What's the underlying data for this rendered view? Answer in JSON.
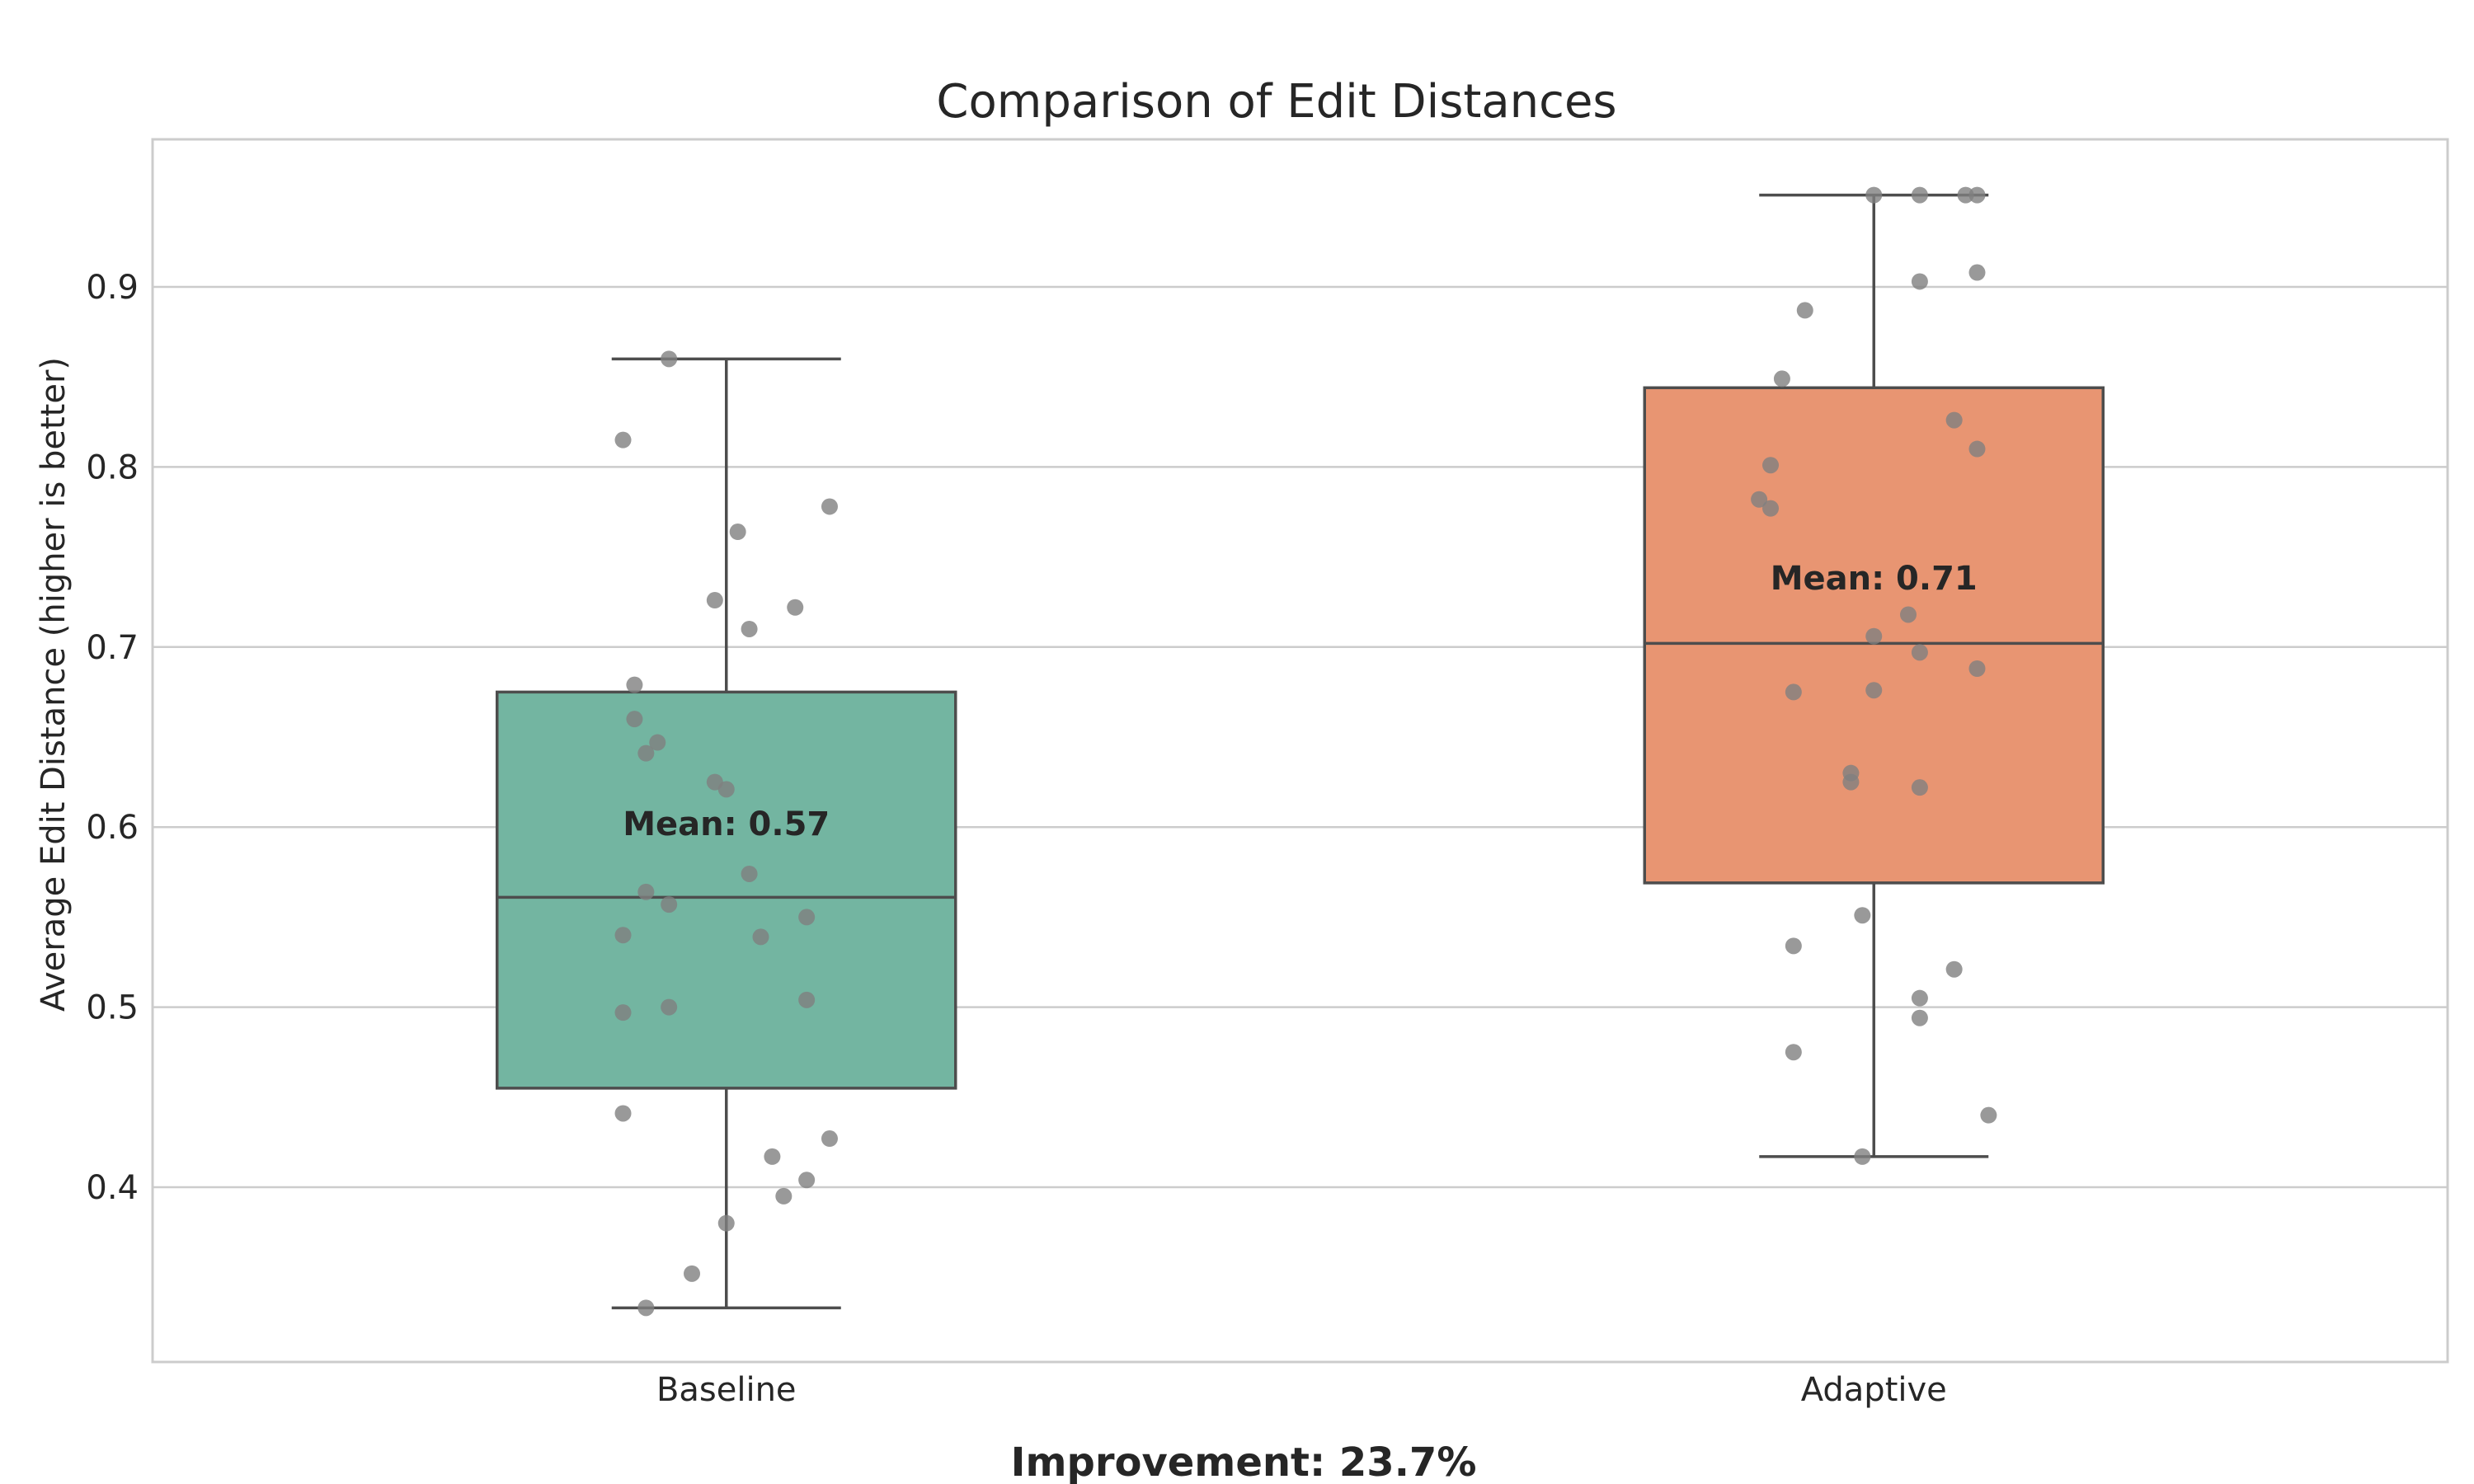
{
  "chart_data": {
    "type": "box",
    "title": "Comparison of Edit Distances",
    "xlabel": "",
    "ylabel": "Average Edit Distance (higher is better)",
    "ylim": [
      0.3,
      0.98
    ],
    "yticks": [
      "0.4",
      "0.5",
      "0.6",
      "0.7",
      "0.8",
      "0.9"
    ],
    "grid": true,
    "categories": [
      "Baseline",
      "Adaptive"
    ],
    "boxes": [
      {
        "name": "Baseline",
        "color": "#73b5a1",
        "whisker_low": 0.333,
        "q1": 0.455,
        "median": 0.561,
        "q3": 0.675,
        "whisker_high": 0.86,
        "mean_label": "Mean: 0.57",
        "points": [
          [
            -0.05,
            0.86
          ],
          [
            -0.09,
            0.815
          ],
          [
            0.01,
            0.764
          ],
          [
            0.09,
            0.778
          ],
          [
            -0.01,
            0.726
          ],
          [
            0.06,
            0.722
          ],
          [
            0.02,
            0.71
          ],
          [
            -0.08,
            0.679
          ],
          [
            -0.08,
            0.66
          ],
          [
            -0.06,
            0.647
          ],
          [
            -0.07,
            0.641
          ],
          [
            -0.01,
            0.625
          ],
          [
            0.0,
            0.621
          ],
          [
            0.02,
            0.574
          ],
          [
            -0.07,
            0.564
          ],
          [
            -0.05,
            0.557
          ],
          [
            0.07,
            0.55
          ],
          [
            -0.09,
            0.54
          ],
          [
            0.03,
            0.539
          ],
          [
            0.07,
            0.504
          ],
          [
            -0.05,
            0.5
          ],
          [
            -0.09,
            0.497
          ],
          [
            -0.09,
            0.441
          ],
          [
            0.09,
            0.427
          ],
          [
            0.04,
            0.417
          ],
          [
            0.07,
            0.404
          ],
          [
            0.05,
            0.395
          ],
          [
            0.0,
            0.38
          ],
          [
            -0.03,
            0.352
          ],
          [
            -0.07,
            0.333
          ]
        ]
      },
      {
        "name": "Adaptive",
        "color": "#e89572",
        "whisker_low": 0.417,
        "q1": 0.569,
        "median": 0.702,
        "q3": 0.844,
        "whisker_high": 0.951,
        "mean_label": "Mean: 0.71",
        "points": [
          [
            0.0,
            0.951
          ],
          [
            0.04,
            0.951
          ],
          [
            0.08,
            0.951
          ],
          [
            0.09,
            0.951
          ],
          [
            0.04,
            0.903
          ],
          [
            0.09,
            0.908
          ],
          [
            -0.06,
            0.887
          ],
          [
            -0.08,
            0.849
          ],
          [
            0.07,
            0.826
          ],
          [
            0.09,
            0.81
          ],
          [
            -0.09,
            0.801
          ],
          [
            -0.1,
            0.782
          ],
          [
            -0.09,
            0.777
          ],
          [
            0.03,
            0.718
          ],
          [
            0.0,
            0.706
          ],
          [
            0.04,
            0.697
          ],
          [
            0.09,
            0.688
          ],
          [
            -0.07,
            0.675
          ],
          [
            0.0,
            0.676
          ],
          [
            -0.02,
            0.63
          ],
          [
            -0.02,
            0.625
          ],
          [
            0.04,
            0.622
          ],
          [
            -0.01,
            0.551
          ],
          [
            -0.07,
            0.534
          ],
          [
            0.07,
            0.521
          ],
          [
            0.04,
            0.505
          ],
          [
            0.04,
            0.494
          ],
          [
            -0.07,
            0.475
          ],
          [
            0.1,
            0.44
          ],
          [
            -0.01,
            0.417
          ]
        ]
      }
    ]
  },
  "footer": "Improvement: 23.7%",
  "colors": {
    "grid": "#cccccc",
    "frame": "#cccccc",
    "box_edge": "#4d4d4d",
    "points": "#7f7f7f"
  }
}
